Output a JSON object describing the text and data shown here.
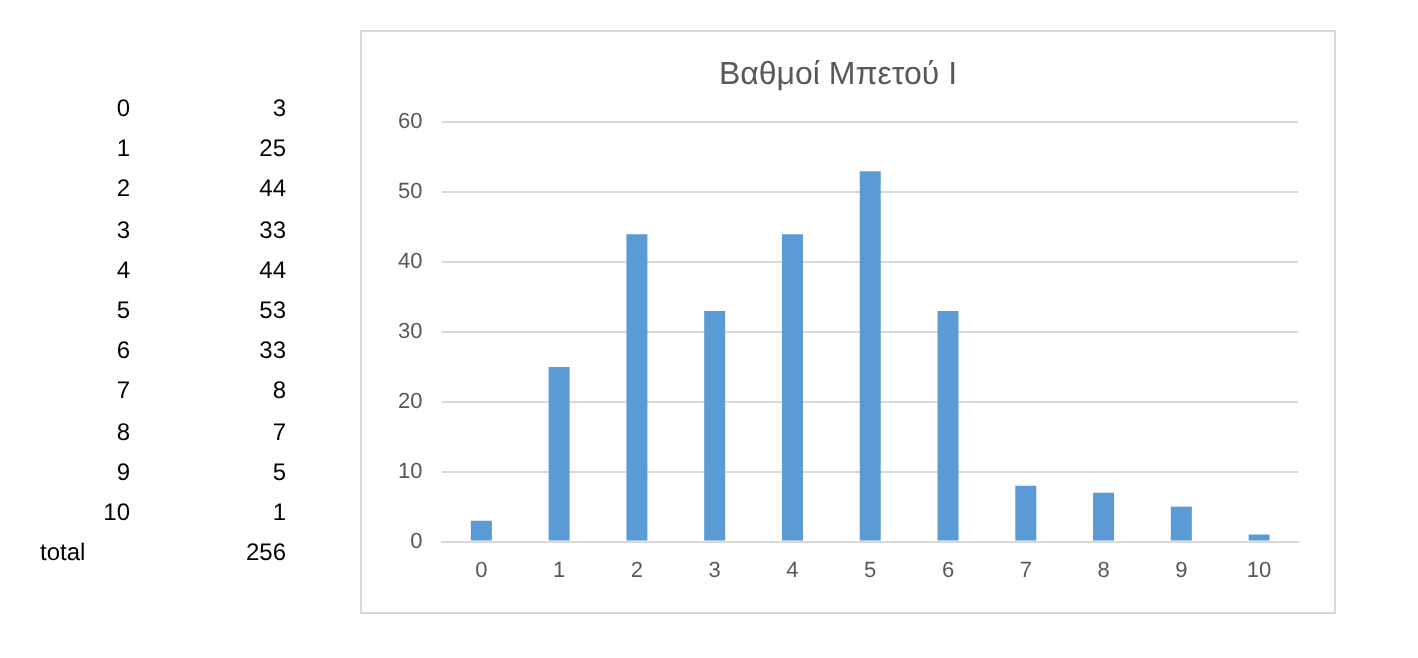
{
  "chart_data": {
    "type": "bar",
    "title": "Βαθμοί Μπετού Ι",
    "categories": [
      "0",
      "1",
      "2",
      "3",
      "4",
      "5",
      "6",
      "7",
      "8",
      "9",
      "10"
    ],
    "values": [
      3,
      25,
      44,
      33,
      44,
      53,
      33,
      8,
      7,
      5,
      1
    ],
    "color": "#5b9bd5",
    "ylim": [
      0,
      60
    ],
    "yticks": [
      0,
      10,
      20,
      30,
      40,
      50,
      60
    ],
    "grid": "y",
    "annotations": [
      "0",
      "3",
      "1",
      "25",
      "2",
      "44",
      "3",
      "33",
      "4",
      "44",
      "5",
      "53",
      "6",
      "33",
      "7",
      "8",
      "8",
      "7",
      "9",
      "5",
      "10",
      "1",
      "total",
      "256"
    ]
  }
}
